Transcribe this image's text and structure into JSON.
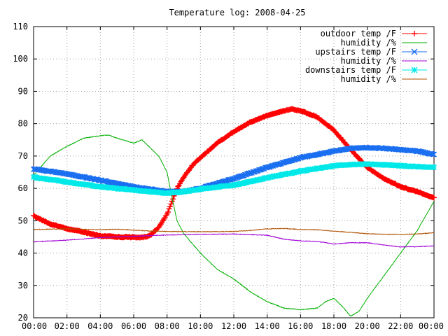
{
  "chart_data": {
    "type": "line",
    "title": "Temperature log: 2008-04-25",
    "xlabel": "",
    "ylabel": "",
    "xlim": [
      0,
      24
    ],
    "ylim": [
      20,
      110
    ],
    "x_ticks": [
      "00:00",
      "02:00",
      "04:00",
      "06:00",
      "08:00",
      "10:00",
      "12:00",
      "14:00",
      "16:00",
      "18:00",
      "20:00",
      "22:00",
      "00:00"
    ],
    "y_ticks": [
      20,
      30,
      40,
      50,
      60,
      70,
      80,
      90,
      100,
      110
    ],
    "grid": true,
    "legend_position": "top-right",
    "series": [
      {
        "name": "outdoor temp /F",
        "color": "#ff0000",
        "marker": "plus",
        "x": [
          0,
          1,
          2,
          3,
          4,
          5,
          6,
          6.5,
          7,
          7.5,
          8,
          8.3,
          8.6,
          9,
          9.5,
          10,
          11,
          12,
          13,
          14,
          15,
          15.5,
          16,
          17,
          18,
          19,
          20,
          21,
          22,
          23,
          24
        ],
        "y": [
          51.5,
          49,
          47.5,
          46.5,
          45.3,
          45,
          44.9,
          44.8,
          45.5,
          48,
          52,
          56,
          60,
          63.5,
          67,
          69.5,
          74,
          77.5,
          80.5,
          82.5,
          84,
          84.5,
          84,
          82,
          78,
          72,
          66.5,
          63,
          60.5,
          59,
          57
        ]
      },
      {
        "name": "humidity /%",
        "color": "#00b000",
        "marker": "none",
        "x": [
          0,
          0.5,
          1,
          2,
          3,
          4,
          4.5,
          5,
          6,
          6.5,
          7,
          7.5,
          8,
          8.3,
          8.6,
          9,
          10,
          11,
          12,
          13,
          14,
          15,
          16,
          17,
          17.5,
          18,
          18.5,
          19,
          19.5,
          20,
          21,
          22,
          23,
          24
        ],
        "y": [
          64,
          67,
          70,
          73,
          75.5,
          76.3,
          76.5,
          75.5,
          74,
          75,
          72.5,
          70,
          65,
          57,
          50,
          46,
          40,
          35,
          32,
          28,
          25,
          23,
          22.5,
          23,
          25,
          26,
          23.5,
          20.5,
          22,
          26,
          33,
          40,
          47,
          56
        ]
      },
      {
        "name": "upstairs temp /F",
        "color": "#1a6ef0",
        "marker": "x",
        "x": [
          0,
          2,
          4,
          6,
          8,
          9,
          10,
          12,
          14,
          16,
          18,
          19,
          20,
          21,
          22,
          23,
          24
        ],
        "y": [
          66,
          64.5,
          62.5,
          60.5,
          59,
          59,
          60,
          63,
          66.5,
          69.5,
          71.5,
          72.4,
          72.6,
          72.4,
          72,
          71.5,
          70.5
        ]
      },
      {
        "name": "humidity /%",
        "color": "#a000d8",
        "marker": "none",
        "x": [
          0,
          2,
          4,
          6,
          8,
          10,
          12,
          14,
          15,
          16,
          17,
          18,
          19,
          20,
          21,
          22,
          23,
          24
        ],
        "y": [
          43.5,
          44,
          44.8,
          45.2,
          45.6,
          45.8,
          45.9,
          45.5,
          44.3,
          43.8,
          43.6,
          42.8,
          43.2,
          43.2,
          42.5,
          41.9,
          42,
          42.2
        ]
      },
      {
        "name": "downstairs temp /F",
        "color": "#00e8e8",
        "marker": "star",
        "x": [
          0,
          2,
          4,
          6,
          8,
          9,
          10,
          12,
          14,
          16,
          18,
          19,
          20,
          21,
          22,
          23,
          24
        ],
        "y": [
          63.5,
          62,
          60.5,
          59.5,
          58.5,
          59,
          59.8,
          61,
          63.3,
          65.3,
          67,
          67.4,
          67.5,
          67.3,
          67,
          66.7,
          66.5
        ]
      },
      {
        "name": "humidity /%",
        "color": "#b05000",
        "marker": "none",
        "x": [
          0,
          2,
          4,
          5,
          6,
          7,
          8,
          10,
          12,
          13,
          14,
          15,
          16,
          17,
          18,
          19,
          20,
          21,
          22,
          23,
          24
        ],
        "y": [
          47.3,
          47.5,
          47.2,
          47.4,
          47.1,
          46.8,
          46.7,
          46.6,
          46.7,
          47,
          47.5,
          47.6,
          47.3,
          47.2,
          46.8,
          46.4,
          46,
          45.8,
          45.8,
          45.9,
          46.3
        ]
      }
    ]
  }
}
